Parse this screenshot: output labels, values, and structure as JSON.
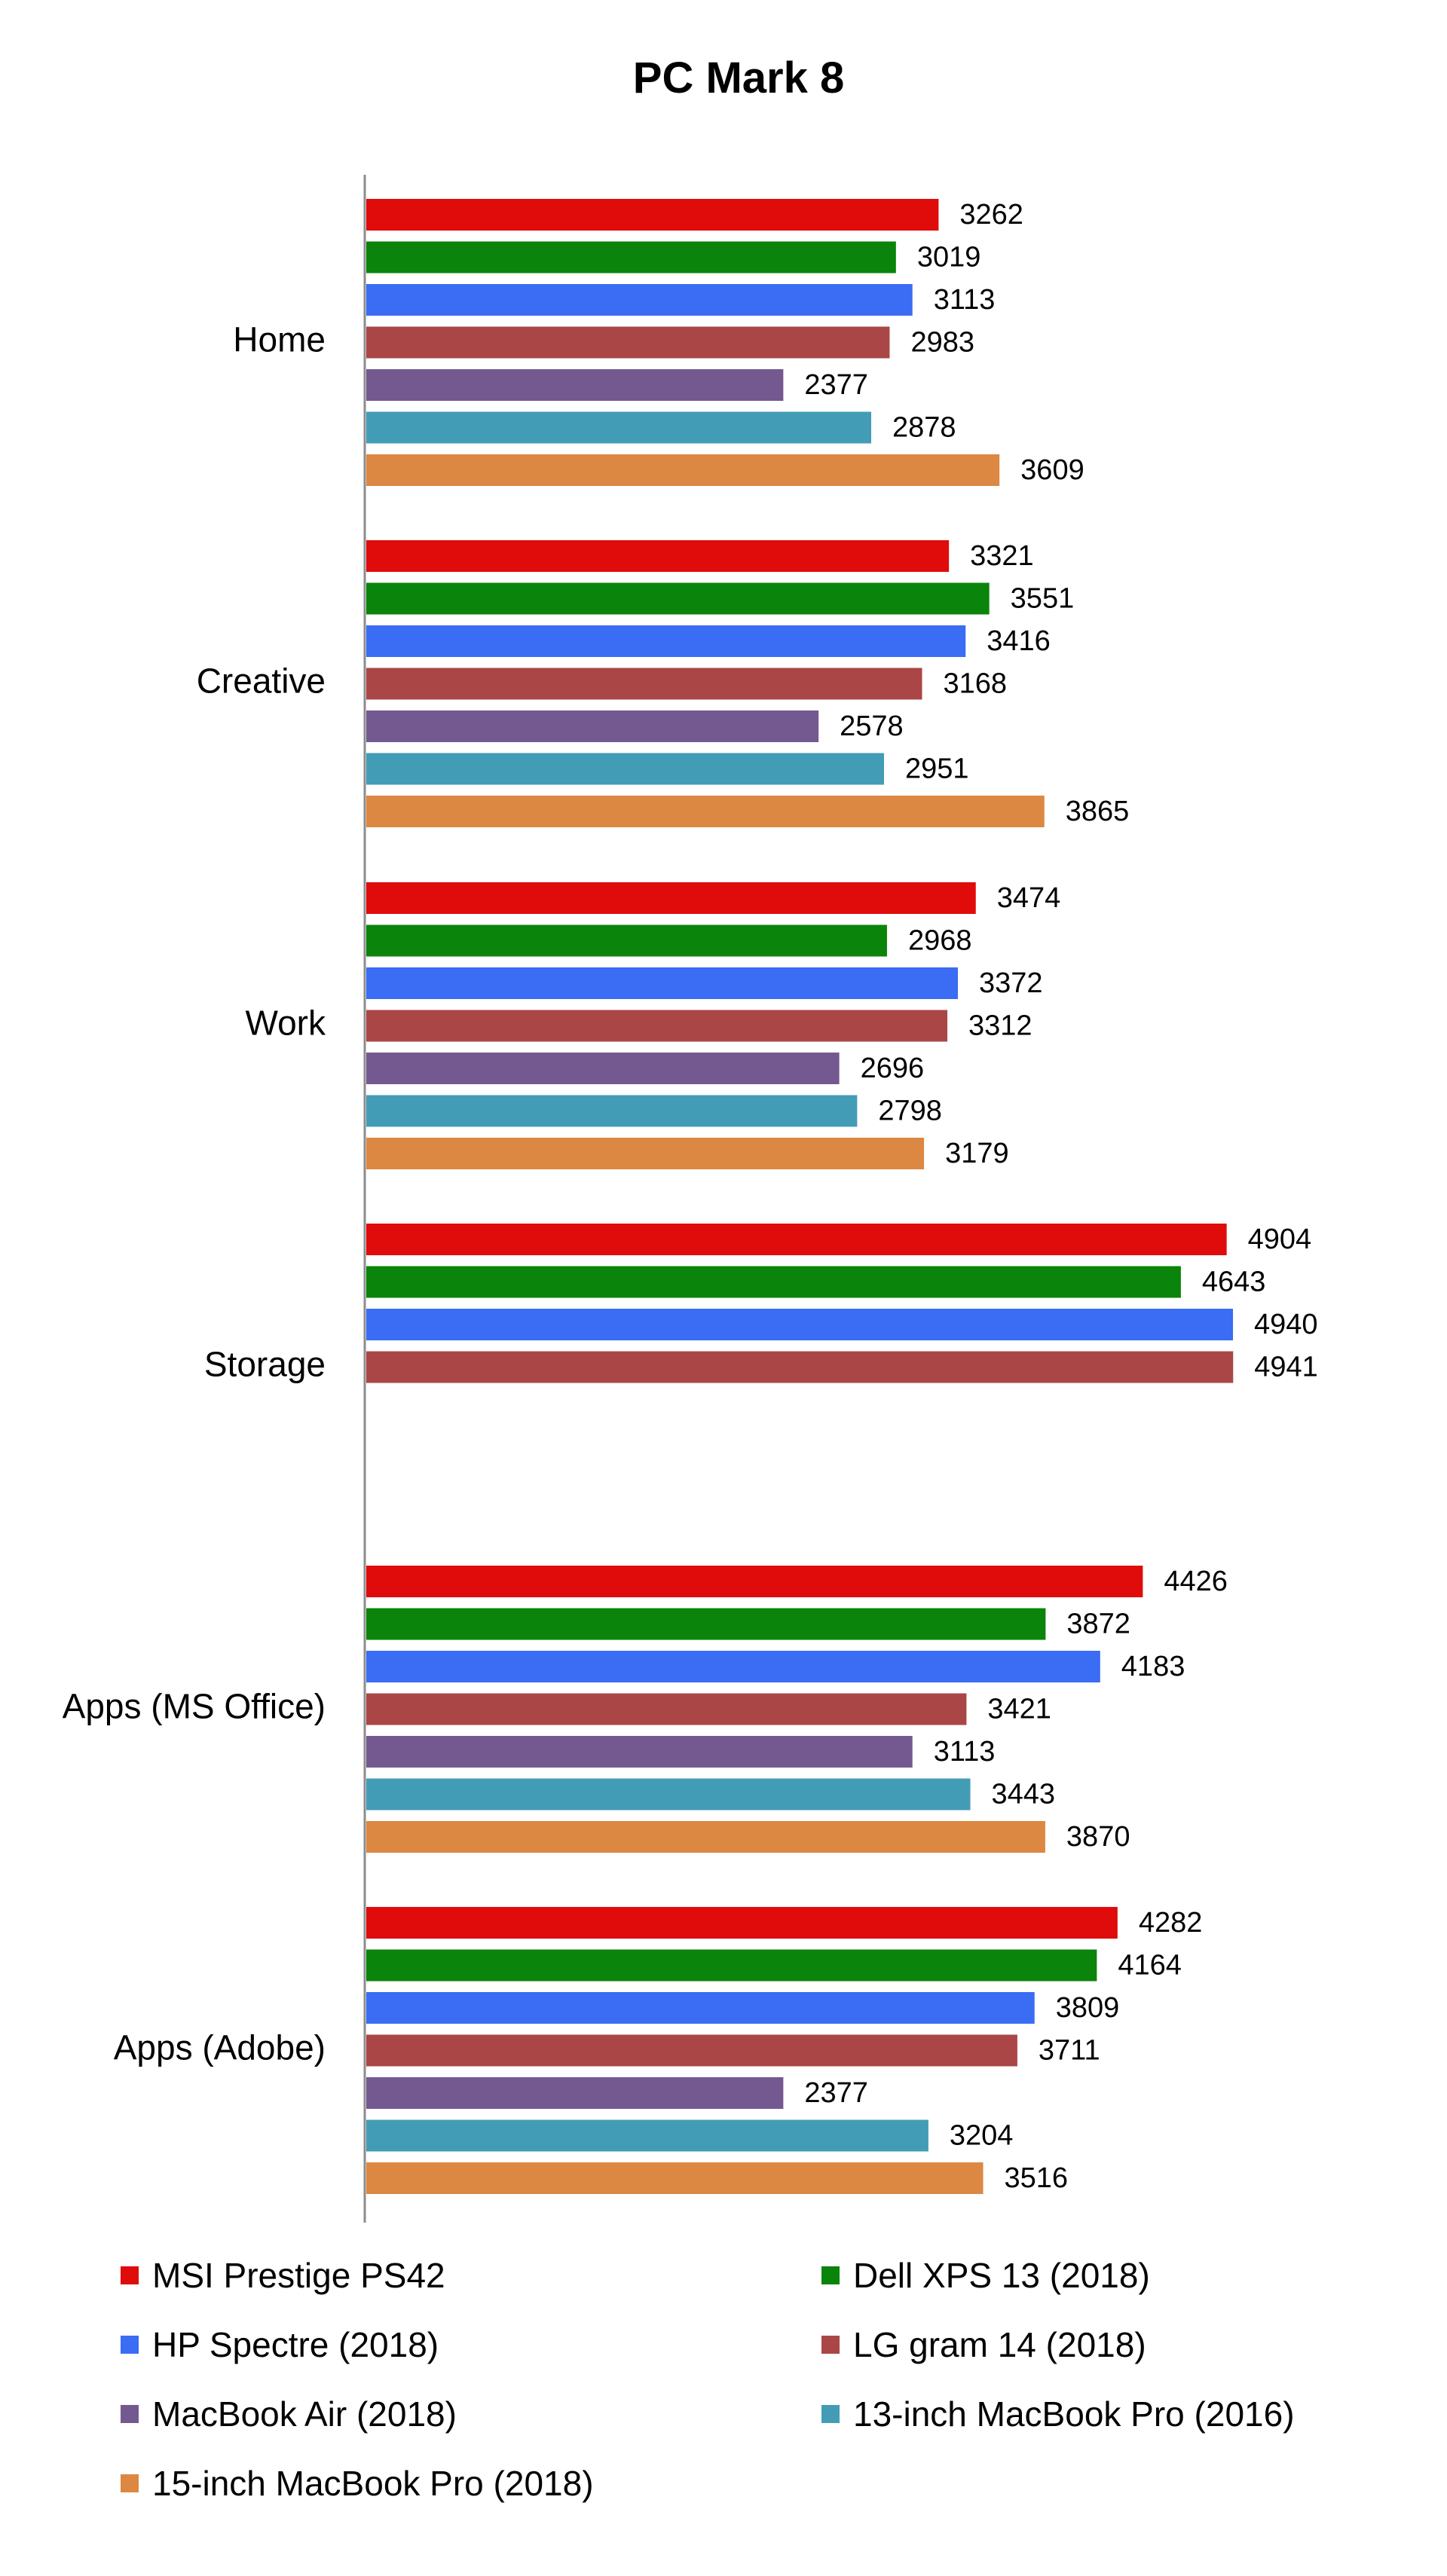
{
  "chart_data": {
    "type": "bar",
    "orientation": "horizontal",
    "title": "PC Mark 8",
    "categories": [
      "Home",
      "Creative",
      "Work",
      "Storage",
      "Apps (MS Office)",
      "Apps (Adobe)"
    ],
    "series": [
      {
        "name": "MSI Prestige PS42",
        "color": "#e00b0b",
        "values": [
          3262,
          3321,
          3474,
          4904,
          4426,
          4282
        ]
      },
      {
        "name": "Dell XPS 13 (2018)",
        "color": "#0a840a",
        "values": [
          3019,
          3551,
          2968,
          4643,
          3872,
          4164
        ]
      },
      {
        "name": "HP Spectre (2018)",
        "color": "#3a6cf4",
        "values": [
          3113,
          3416,
          3372,
          4940,
          4183,
          3809
        ]
      },
      {
        "name": "LG gram 14 (2018)",
        "color": "#ab4646",
        "values": [
          2983,
          3168,
          3312,
          4941,
          3421,
          3711
        ]
      },
      {
        "name": "MacBook Air (2018)",
        "color": "#735990",
        "values": [
          2377,
          2578,
          2696,
          null,
          3113,
          2377
        ]
      },
      {
        "name": "13-inch MacBook Pro (2016)",
        "color": "#439cb6",
        "values": [
          2878,
          2951,
          2798,
          null,
          3443,
          3204
        ]
      },
      {
        "name": "15-inch MacBook Pro (2018)",
        "color": "#dc8842",
        "values": [
          3609,
          3865,
          3179,
          null,
          3870,
          3516
        ]
      }
    ],
    "xlim": [
      0,
      5000
    ],
    "grid": false,
    "legend_position": "bottom"
  }
}
